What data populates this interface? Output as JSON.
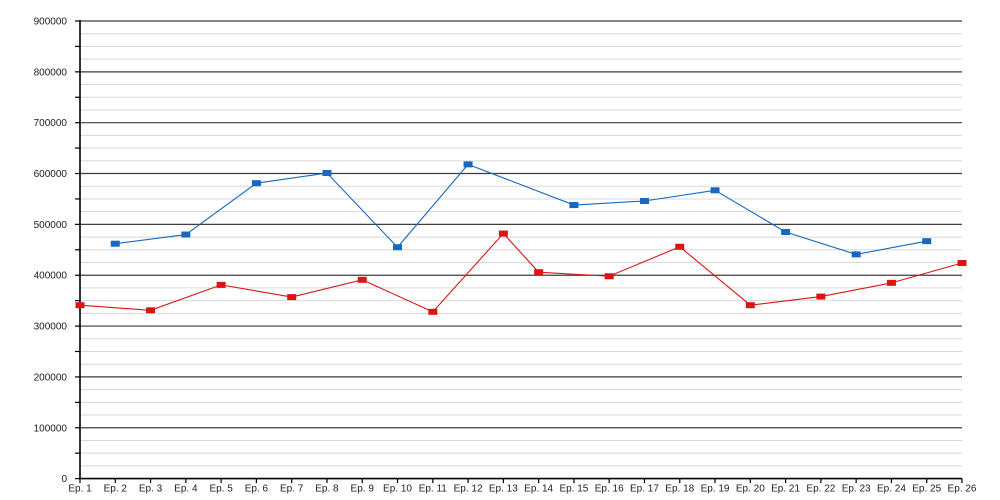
{
  "chart_data": {
    "type": "line",
    "title": "",
    "xlabel": "",
    "ylabel": "",
    "legend": "none",
    "grid": "major+minor",
    "ylim": [
      0,
      900000
    ],
    "y_major_step": 100000,
    "y_minor_step": 25000,
    "y_tick_step": 50000,
    "y_tick_labels": [
      "0",
      "100000",
      "200000",
      "300000",
      "400000",
      "500000",
      "600000",
      "700000",
      "800000",
      "900000"
    ],
    "x_categories": [
      "Ep. 1",
      "Ep. 2",
      "Ep. 3",
      "Ep. 4",
      "Ep. 5",
      "Ep. 6",
      "Ep. 7",
      "Ep. 8",
      "Ep. 9",
      "Ep. 10",
      "Ep. 11",
      "Ep. 12",
      "Ep. 13",
      "Ep. 14",
      "Ep. 15",
      "Ep. 16",
      "Ep. 17",
      "Ep. 18",
      "Ep. 19",
      "Ep. 20",
      "Ep. 21",
      "Ep. 22",
      "Ep. 23",
      "Ep. 24",
      "Ep. 25",
      "Ep. 26"
    ],
    "series": [
      {
        "name": "series-blue",
        "color": "#1668c0",
        "points": [
          {
            "ep": 2,
            "value": 462000
          },
          {
            "ep": 4,
            "value": 480000
          },
          {
            "ep": 6,
            "value": 581000
          },
          {
            "ep": 8,
            "value": 601000
          },
          {
            "ep": 10,
            "value": 455000
          },
          {
            "ep": 12,
            "value": 618000
          },
          {
            "ep": 15,
            "value": 538000
          },
          {
            "ep": 17,
            "value": 546000
          },
          {
            "ep": 19,
            "value": 567000
          },
          {
            "ep": 21,
            "value": 485000
          },
          {
            "ep": 23,
            "value": 441000
          },
          {
            "ep": 25,
            "value": 467000
          }
        ]
      },
      {
        "name": "series-red",
        "color": "#dc1414",
        "points": [
          {
            "ep": 1,
            "value": 341000
          },
          {
            "ep": 3,
            "value": 331000
          },
          {
            "ep": 5,
            "value": 381000
          },
          {
            "ep": 7,
            "value": 357000
          },
          {
            "ep": 9,
            "value": 391000
          },
          {
            "ep": 11,
            "value": 328000
          },
          {
            "ep": 13,
            "value": 482000
          },
          {
            "ep": 14,
            "value": 406000
          },
          {
            "ep": 16,
            "value": 398000
          },
          {
            "ep": 18,
            "value": 456000
          },
          {
            "ep": 20,
            "value": 341000
          },
          {
            "ep": 22,
            "value": 358000
          },
          {
            "ep": 24,
            "value": 385000
          },
          {
            "ep": 26,
            "value": 424000
          }
        ]
      }
    ],
    "colors": {
      "background": "#ffffff",
      "axis": "#000000",
      "major_grid": "#3e3e3e",
      "minor_grid": "#d8d8d8",
      "label": "#1c1c1c"
    }
  }
}
